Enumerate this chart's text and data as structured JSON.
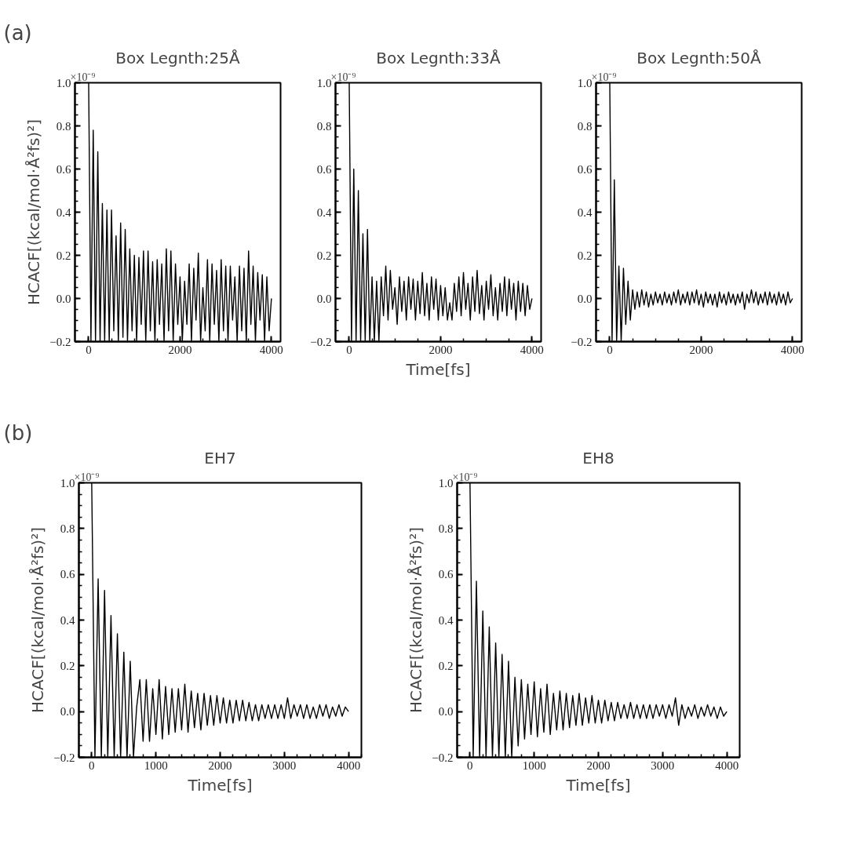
{
  "chart_data": [
    {
      "type": "line",
      "title": "Box Legnth:25Å",
      "ylabel": "HCACF[(kcal/mol·Å²fs)²]",
      "annotations": [
        "(a)",
        "×10⁻⁹"
      ],
      "xlim": [
        -300,
        4200
      ],
      "ylim": [
        -0.2,
        1.0
      ],
      "xticks": [
        0,
        2000,
        4000
      ],
      "yticks": [
        {
          "value": -0.2,
          "label": "−0.2"
        },
        {
          "value": 0,
          "label": "0.0"
        },
        0.2,
        0.4,
        0.6,
        0.8,
        {
          "value": 1,
          "label": "1.0"
        }
      ],
      "x": [
        0,
        50,
        100,
        150,
        200,
        250,
        300,
        350,
        400,
        450,
        500,
        550,
        600,
        650,
        700,
        750,
        800,
        850,
        900,
        950,
        1000,
        1050,
        1100,
        1150,
        1200,
        1250,
        1300,
        1350,
        1400,
        1450,
        1500,
        1550,
        1600,
        1650,
        1700,
        1750,
        1800,
        1850,
        1900,
        1950,
        2000,
        2050,
        2100,
        2150,
        2200,
        2250,
        2300,
        2350,
        2400,
        2450,
        2500,
        2550,
        2600,
        2650,
        2700,
        2750,
        2800,
        2850,
        2900,
        2950,
        3000,
        3050,
        3100,
        3150,
        3200,
        3250,
        3300,
        3350,
        3400,
        3450,
        3500,
        3550,
        3600,
        3650,
        3700,
        3750,
        3800,
        3850,
        3900,
        3950,
        4000
      ],
      "series": [
        {
          "color": "#000000",
          "values": [
            1.0,
            -0.2,
            0.78,
            -0.2,
            0.68,
            -0.2,
            0.44,
            -0.2,
            0.41,
            -0.2,
            0.41,
            -0.15,
            0.29,
            -0.2,
            0.35,
            -0.18,
            0.32,
            -0.2,
            0.23,
            -0.15,
            0.2,
            -0.2,
            0.19,
            -0.12,
            0.22,
            -0.2,
            0.22,
            -0.15,
            0.17,
            -0.2,
            0.18,
            -0.12,
            0.16,
            -0.2,
            0.23,
            -0.15,
            0.22,
            -0.2,
            0.16,
            -0.12,
            0.1,
            -0.2,
            0.08,
            -0.12,
            0.16,
            -0.2,
            0.14,
            -0.1,
            0.21,
            -0.2,
            0.05,
            -0.15,
            0.18,
            -0.2,
            0.16,
            -0.12,
            0.13,
            -0.2,
            0.18,
            -0.15,
            0.15,
            -0.2,
            0.15,
            -0.1,
            0.1,
            -0.2,
            0.15,
            -0.15,
            0.14,
            -0.2,
            0.22,
            -0.12,
            0.15,
            -0.2,
            0.12,
            -0.1,
            0.11,
            -0.2,
            0.1,
            -0.15,
            0.0
          ]
        }
      ]
    },
    {
      "type": "line",
      "title": "Box Legnth:33Å",
      "xlabel": "Time[fs]",
      "annotations": [
        "×10⁻⁹"
      ],
      "xlim": [
        -300,
        4200
      ],
      "ylim": [
        -0.2,
        1.0
      ],
      "xticks": [
        0,
        2000,
        4000
      ],
      "yticks": [
        {
          "value": -0.2,
          "label": "−0.2"
        },
        {
          "value": 0,
          "label": "0.0"
        },
        0.2,
        0.4,
        0.6,
        0.8,
        {
          "value": 1,
          "label": "1.0"
        }
      ],
      "x": [
        0,
        50,
        100,
        150,
        200,
        250,
        300,
        350,
        400,
        450,
        500,
        550,
        600,
        650,
        700,
        750,
        800,
        850,
        900,
        950,
        1000,
        1050,
        1100,
        1150,
        1200,
        1250,
        1300,
        1350,
        1400,
        1450,
        1500,
        1550,
        1600,
        1650,
        1700,
        1750,
        1800,
        1850,
        1900,
        1950,
        2000,
        2050,
        2100,
        2150,
        2200,
        2250,
        2300,
        2350,
        2400,
        2450,
        2500,
        2550,
        2600,
        2650,
        2700,
        2750,
        2800,
        2850,
        2900,
        2950,
        3000,
        3050,
        3100,
        3150,
        3200,
        3250,
        3300,
        3350,
        3400,
        3450,
        3500,
        3550,
        3600,
        3650,
        3700,
        3750,
        3800,
        3850,
        3900,
        3950,
        4000
      ],
      "series": [
        {
          "color": "#000000",
          "values": [
            1.0,
            -0.2,
            0.6,
            -0.2,
            0.5,
            -0.2,
            0.3,
            -0.2,
            0.32,
            -0.2,
            0.1,
            -0.2,
            0.08,
            -0.2,
            0.1,
            -0.08,
            0.15,
            -0.1,
            0.13,
            -0.05,
            0.05,
            -0.12,
            0.1,
            -0.06,
            0.08,
            -0.1,
            0.1,
            -0.05,
            0.09,
            -0.1,
            0.08,
            -0.07,
            0.12,
            -0.08,
            0.07,
            -0.1,
            0.1,
            -0.05,
            0.09,
            -0.1,
            0.06,
            -0.08,
            0.05,
            -0.1,
            -0.02,
            -0.1,
            0.07,
            -0.06,
            0.1,
            -0.08,
            0.12,
            -0.05,
            0.07,
            -0.1,
            0.1,
            -0.06,
            0.13,
            -0.07,
            0.06,
            -0.1,
            0.08,
            -0.05,
            0.11,
            -0.08,
            0.05,
            -0.1,
            0.07,
            -0.06,
            0.1,
            -0.08,
            0.09,
            -0.05,
            0.07,
            -0.1,
            0.08,
            -0.06,
            0.07,
            -0.08,
            0.06,
            -0.05,
            0.0
          ]
        }
      ]
    },
    {
      "type": "line",
      "title": "Box Legnth:50Å",
      "annotations": [
        "×10⁻⁹"
      ],
      "xlim": [
        -300,
        4200
      ],
      "ylim": [
        -0.2,
        1.0
      ],
      "xticks": [
        0,
        2000,
        4000
      ],
      "yticks": [
        {
          "value": -0.2,
          "label": "−0.2"
        },
        {
          "value": 0,
          "label": "0.0"
        },
        0.2,
        0.4,
        0.6,
        0.8,
        {
          "value": 1,
          "label": "1.0"
        }
      ],
      "x": [
        0,
        50,
        100,
        150,
        200,
        250,
        300,
        350,
        400,
        450,
        500,
        550,
        600,
        650,
        700,
        750,
        800,
        850,
        900,
        950,
        1000,
        1050,
        1100,
        1150,
        1200,
        1250,
        1300,
        1350,
        1400,
        1450,
        1500,
        1550,
        1600,
        1650,
        1700,
        1750,
        1800,
        1850,
        1900,
        1950,
        2000,
        2050,
        2100,
        2150,
        2200,
        2250,
        2300,
        2350,
        2400,
        2450,
        2500,
        2550,
        2600,
        2650,
        2700,
        2750,
        2800,
        2850,
        2900,
        2950,
        3000,
        3050,
        3100,
        3150,
        3200,
        3250,
        3300,
        3350,
        3400,
        3450,
        3500,
        3550,
        3600,
        3650,
        3700,
        3750,
        3800,
        3850,
        3900,
        3950,
        4000
      ],
      "series": [
        {
          "color": "#000000",
          "values": [
            1.0,
            -0.2,
            0.55,
            -0.2,
            0.15,
            -0.2,
            0.14,
            -0.12,
            0.08,
            -0.1,
            0.04,
            -0.05,
            0.03,
            -0.04,
            0.04,
            -0.03,
            0.03,
            -0.04,
            0.02,
            -0.03,
            0.03,
            -0.02,
            0.02,
            -0.03,
            0.03,
            -0.02,
            0.02,
            -0.03,
            0.03,
            -0.02,
            0.04,
            -0.03,
            0.02,
            -0.02,
            0.03,
            -0.03,
            0.03,
            -0.02,
            0.04,
            -0.03,
            0.02,
            -0.04,
            0.03,
            -0.02,
            0.02,
            -0.03,
            0.02,
            -0.04,
            0.03,
            -0.02,
            0.02,
            -0.03,
            0.03,
            -0.02,
            0.02,
            -0.03,
            0.02,
            -0.02,
            0.03,
            -0.05,
            0.02,
            -0.02,
            0.04,
            -0.02,
            0.03,
            -0.03,
            0.02,
            -0.02,
            0.03,
            -0.03,
            0.03,
            -0.02,
            0.02,
            -0.03,
            0.03,
            -0.02,
            0.02,
            -0.03,
            0.03,
            -0.02,
            0.0
          ]
        }
      ]
    },
    {
      "type": "line",
      "title": "EH7",
      "xlabel": "Time[fs]",
      "ylabel": "HCACF[(kcal/mol·Å²fs)²]",
      "annotations": [
        "(b)",
        "×10⁻⁹"
      ],
      "xlim": [
        -200,
        4200
      ],
      "ylim": [
        -0.2,
        1.0
      ],
      "xticks": [
        0,
        1000,
        2000,
        3000,
        4000
      ],
      "yticks": [
        {
          "value": -0.2,
          "label": "−0.2"
        },
        {
          "value": 0,
          "label": "0.0"
        },
        0.2,
        0.4,
        0.6,
        0.8,
        {
          "value": 1,
          "label": "1.0"
        }
      ],
      "x": [
        0,
        50,
        100,
        150,
        200,
        250,
        300,
        350,
        400,
        450,
        500,
        550,
        600,
        650,
        700,
        750,
        800,
        850,
        900,
        950,
        1000,
        1050,
        1100,
        1150,
        1200,
        1250,
        1300,
        1350,
        1400,
        1450,
        1500,
        1550,
        1600,
        1650,
        1700,
        1750,
        1800,
        1850,
        1900,
        1950,
        2000,
        2050,
        2100,
        2150,
        2200,
        2250,
        2300,
        2350,
        2400,
        2450,
        2500,
        2550,
        2600,
        2650,
        2700,
        2750,
        2800,
        2850,
        2900,
        2950,
        3000,
        3050,
        3100,
        3150,
        3200,
        3250,
        3300,
        3350,
        3400,
        3450,
        3500,
        3550,
        3600,
        3650,
        3700,
        3750,
        3800,
        3850,
        3900,
        3950,
        4000
      ],
      "series": [
        {
          "color": "#000000",
          "values": [
            1.0,
            -0.2,
            0.58,
            -0.2,
            0.53,
            -0.2,
            0.42,
            -0.2,
            0.34,
            -0.2,
            0.26,
            -0.2,
            0.22,
            -0.2,
            0.02,
            0.14,
            -0.13,
            0.14,
            -0.13,
            0.1,
            -0.1,
            0.14,
            -0.12,
            0.11,
            -0.1,
            0.1,
            -0.09,
            0.1,
            -0.08,
            0.12,
            -0.09,
            0.09,
            -0.07,
            0.08,
            -0.08,
            0.08,
            -0.06,
            0.07,
            -0.06,
            0.07,
            -0.05,
            0.06,
            -0.05,
            0.05,
            -0.05,
            0.05,
            -0.04,
            0.05,
            -0.04,
            0.04,
            -0.04,
            0.03,
            -0.04,
            0.03,
            -0.03,
            0.03,
            -0.03,
            0.03,
            -0.03,
            0.03,
            -0.03,
            0.06,
            -0.03,
            0.03,
            -0.02,
            0.03,
            -0.03,
            0.03,
            -0.03,
            0.02,
            -0.03,
            0.03,
            -0.02,
            0.03,
            -0.03,
            0.02,
            -0.02,
            0.03,
            -0.02,
            0.02,
            0.0
          ]
        }
      ]
    },
    {
      "type": "line",
      "title": "EH8",
      "xlabel": "Time[fs]",
      "ylabel": "HCACF[(kcal/mol·Å²fs)²]",
      "annotations": [
        "×10⁻⁹"
      ],
      "xlim": [
        -200,
        4200
      ],
      "ylim": [
        -0.2,
        1.0
      ],
      "xticks": [
        0,
        1000,
        2000,
        3000,
        4000
      ],
      "yticks": [
        {
          "value": -0.2,
          "label": "−0.2"
        },
        {
          "value": 0,
          "label": "0.0"
        },
        0.2,
        0.4,
        0.6,
        0.8,
        {
          "value": 1,
          "label": "1.0"
        }
      ],
      "x": [
        0,
        50,
        100,
        150,
        200,
        250,
        300,
        350,
        400,
        450,
        500,
        550,
        600,
        650,
        700,
        750,
        800,
        850,
        900,
        950,
        1000,
        1050,
        1100,
        1150,
        1200,
        1250,
        1300,
        1350,
        1400,
        1450,
        1500,
        1550,
        1600,
        1650,
        1700,
        1750,
        1800,
        1850,
        1900,
        1950,
        2000,
        2050,
        2100,
        2150,
        2200,
        2250,
        2300,
        2350,
        2400,
        2450,
        2500,
        2550,
        2600,
        2650,
        2700,
        2750,
        2800,
        2850,
        2900,
        2950,
        3000,
        3050,
        3100,
        3150,
        3200,
        3250,
        3300,
        3350,
        3400,
        3450,
        3500,
        3550,
        3600,
        3650,
        3700,
        3750,
        3800,
        3850,
        3900,
        3950,
        4000
      ],
      "series": [
        {
          "color": "#000000",
          "values": [
            1.0,
            -0.2,
            0.57,
            -0.2,
            0.44,
            -0.2,
            0.37,
            -0.2,
            0.3,
            -0.2,
            0.25,
            -0.2,
            0.22,
            -0.2,
            0.15,
            -0.15,
            0.14,
            -0.12,
            0.12,
            -0.1,
            0.13,
            -0.11,
            0.1,
            -0.09,
            0.12,
            -0.1,
            0.08,
            -0.08,
            0.09,
            -0.08,
            0.08,
            -0.07,
            0.07,
            -0.06,
            0.08,
            -0.06,
            0.06,
            -0.05,
            0.07,
            -0.05,
            0.05,
            -0.05,
            0.05,
            -0.04,
            0.04,
            -0.04,
            0.04,
            -0.03,
            0.03,
            -0.03,
            0.04,
            -0.03,
            0.03,
            -0.03,
            0.03,
            -0.03,
            0.03,
            -0.03,
            0.03,
            -0.02,
            0.03,
            -0.03,
            0.03,
            -0.02,
            0.06,
            -0.06,
            0.03,
            -0.03,
            0.02,
            -0.02,
            0.03,
            -0.03,
            0.02,
            -0.02,
            0.03,
            -0.02,
            0.02,
            -0.03,
            0.02,
            -0.02,
            0.0
          ]
        }
      ]
    }
  ]
}
